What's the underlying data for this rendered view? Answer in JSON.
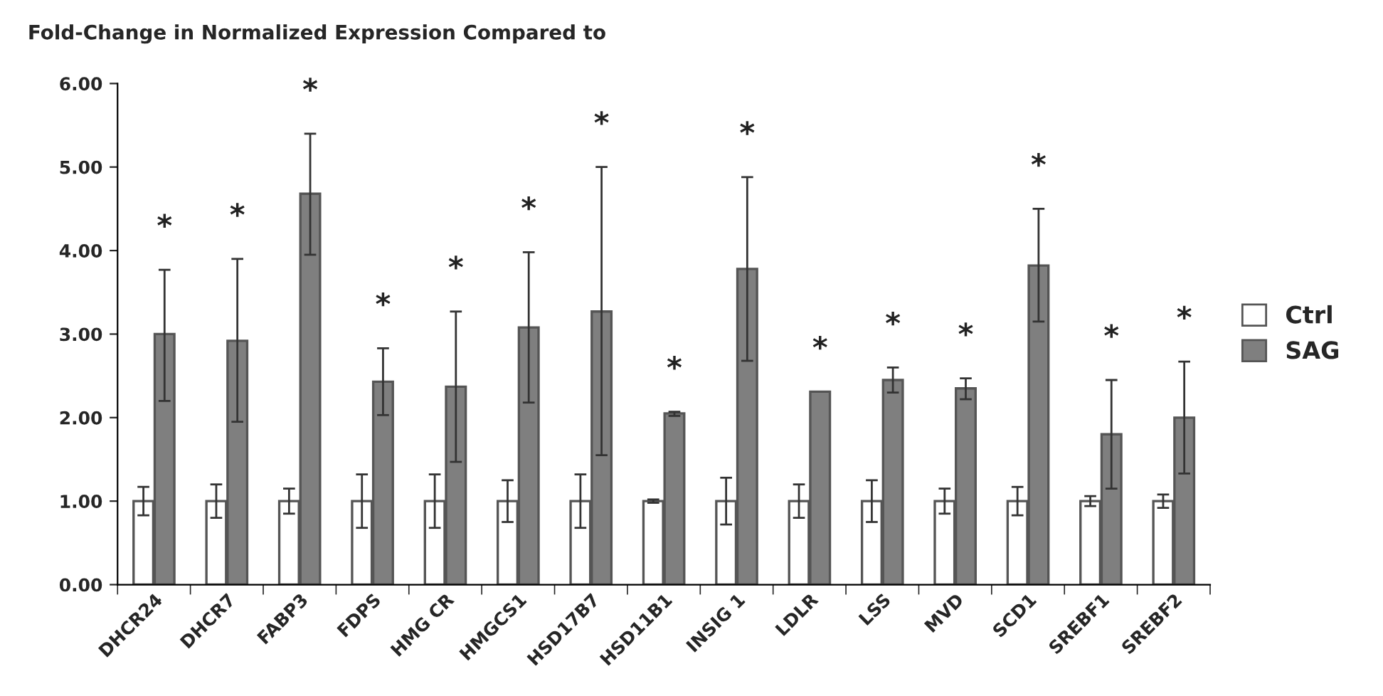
{
  "chart_data": {
    "type": "bar",
    "title": "Fold-Change in Normalized Expression Compared to",
    "categories": [
      "DHCR24",
      "DHCR7",
      "FABP3",
      "FDPS",
      "HMG CR",
      "HMGCS1",
      "HSD17B7",
      "HSD11B1",
      "INSIG 1",
      "LDLR",
      "LSS",
      "MVD",
      "SCD1",
      "SREBF1",
      "SREBF2"
    ],
    "series": [
      {
        "name": "Ctrl",
        "color": "#ffffff",
        "values": [
          1.0,
          1.0,
          1.0,
          1.0,
          1.0,
          1.0,
          1.0,
          1.0,
          1.0,
          1.0,
          1.0,
          1.0,
          1.0,
          1.0,
          1.0
        ],
        "errors": [
          0.17,
          0.2,
          0.15,
          0.32,
          0.32,
          0.25,
          0.32,
          0.02,
          0.28,
          0.2,
          0.25,
          0.15,
          0.17,
          0.06,
          0.08
        ]
      },
      {
        "name": "SAG",
        "color": "#7f7f7f",
        "values": [
          3.0,
          2.92,
          4.68,
          2.43,
          2.37,
          3.08,
          3.27,
          2.05,
          3.78,
          2.31,
          2.45,
          2.35,
          3.82,
          1.8,
          2.0
        ],
        "errors": [
          [
            2.2,
            3.77
          ],
          [
            1.95,
            3.9
          ],
          [
            3.95,
            5.4
          ],
          [
            2.03,
            2.83
          ],
          [
            1.47,
            3.27
          ],
          [
            2.18,
            3.98
          ],
          [
            1.55,
            5.0
          ],
          [
            2.02,
            2.07
          ],
          [
            2.68,
            4.88
          ],
          null,
          [
            2.3,
            2.6
          ],
          [
            2.22,
            2.47
          ],
          [
            3.15,
            4.5
          ],
          [
            1.15,
            2.45
          ],
          [
            1.33,
            2.67
          ]
        ]
      }
    ],
    "annotations": [
      "*",
      "*",
      "*",
      "*",
      "*",
      "*",
      "*",
      "*",
      "*",
      "*",
      "*",
      "*",
      "*",
      "*",
      "*"
    ],
    "ylim": [
      0,
      6
    ],
    "yticks": [
      {
        "value": 0,
        "label": "0.00"
      },
      {
        "value": 1,
        "label": "1.00"
      },
      {
        "value": 2,
        "label": "2.00"
      },
      {
        "value": 3,
        "label": "3.00"
      },
      {
        "value": 4,
        "label": "4.00"
      },
      {
        "value": 5,
        "label": "5.00"
      },
      {
        "value": 6,
        "label": "6.00"
      }
    ],
    "grid": false,
    "legend": "right"
  }
}
